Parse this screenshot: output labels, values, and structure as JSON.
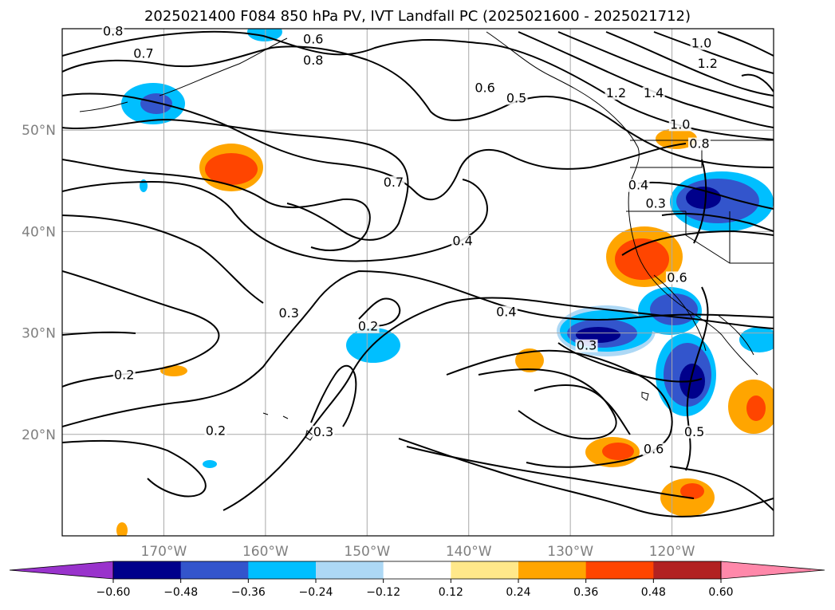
{
  "title": "2025021400 F084 850 hPa PV, IVT Landfall PC (2025021600 - 2025021712)",
  "map": {
    "lon_ticks": [
      {
        "lon": -170,
        "label": "170°W"
      },
      {
        "lon": -160,
        "label": "160°W"
      },
      {
        "lon": -150,
        "label": "150°W"
      },
      {
        "lon": -140,
        "label": "140°W"
      },
      {
        "lon": -130,
        "label": "130°W"
      },
      {
        "lon": -120,
        "label": "120°W"
      }
    ],
    "lat_ticks": [
      {
        "lat": 20,
        "label": "20°N"
      },
      {
        "lat": 30,
        "label": "30°N"
      },
      {
        "lat": 40,
        "label": "40°N"
      },
      {
        "lat": 50,
        "label": "50°N"
      }
    ],
    "gridlines": true,
    "contour_labels": [
      {
        "text": "0.8",
        "lon": -175,
        "lat": 59.5
      },
      {
        "text": "0.7",
        "lon": -172,
        "lat": 57.3
      },
      {
        "text": "0.6",
        "lon": -155.3,
        "lat": 58.7
      },
      {
        "text": "0.8",
        "lon": -155.3,
        "lat": 56.6
      },
      {
        "text": "0.6",
        "lon": -138.4,
        "lat": 53.9
      },
      {
        "text": "0.5",
        "lon": -135.3,
        "lat": 52.9
      },
      {
        "text": "1.0",
        "lon": -117.1,
        "lat": 58.3
      },
      {
        "text": "1.2",
        "lon": -116.5,
        "lat": 56.3
      },
      {
        "text": "1.2",
        "lon": -125.5,
        "lat": 53.4
      },
      {
        "text": "1.4",
        "lon": -121.8,
        "lat": 53.4
      },
      {
        "text": "1.0",
        "lon": -119.2,
        "lat": 50.3
      },
      {
        "text": "0.8",
        "lon": -117.3,
        "lat": 48.4
      },
      {
        "text": "0.4",
        "lon": -123.3,
        "lat": 44.3
      },
      {
        "text": "0.3",
        "lon": -121.6,
        "lat": 42.5
      },
      {
        "text": "0.7",
        "lon": -147.4,
        "lat": 44.6
      },
      {
        "text": "0.4",
        "lon": -140.6,
        "lat": 38.8
      },
      {
        "text": "0.4",
        "lon": -136.3,
        "lat": 31.8
      },
      {
        "text": "0.6",
        "lon": -119.5,
        "lat": 35.2
      },
      {
        "text": "0.3",
        "lon": -157.7,
        "lat": 31.7
      },
      {
        "text": "0.2",
        "lon": -149.9,
        "lat": 30.4
      },
      {
        "text": "0.3",
        "lon": -128.4,
        "lat": 28.5
      },
      {
        "text": "0.2",
        "lon": -173.9,
        "lat": 25.6
      },
      {
        "text": "0.2",
        "lon": -164.9,
        "lat": 20.1
      },
      {
        "text": "0.3",
        "lon": -154.3,
        "lat": 20.0
      },
      {
        "text": "0.6",
        "lon": -121.8,
        "lat": 18.3
      },
      {
        "text": "0.5",
        "lon": -117.8,
        "lat": 20.0
      }
    ]
  },
  "colorbar": {
    "colors": [
      "#9933cc",
      "#00008b",
      "#3355cc",
      "#00bfff",
      "#add8f5",
      "#ffffff",
      "#ffe88a",
      "#ffa500",
      "#ff4500",
      "#b22222",
      "#ff88aa"
    ],
    "tick_labels": [
      "−0.60",
      "−0.48",
      "−0.36",
      "−0.24",
      "−0.12",
      "0.12",
      "0.24",
      "0.36",
      "0.48",
      "0.60"
    ],
    "extend": "both"
  }
}
